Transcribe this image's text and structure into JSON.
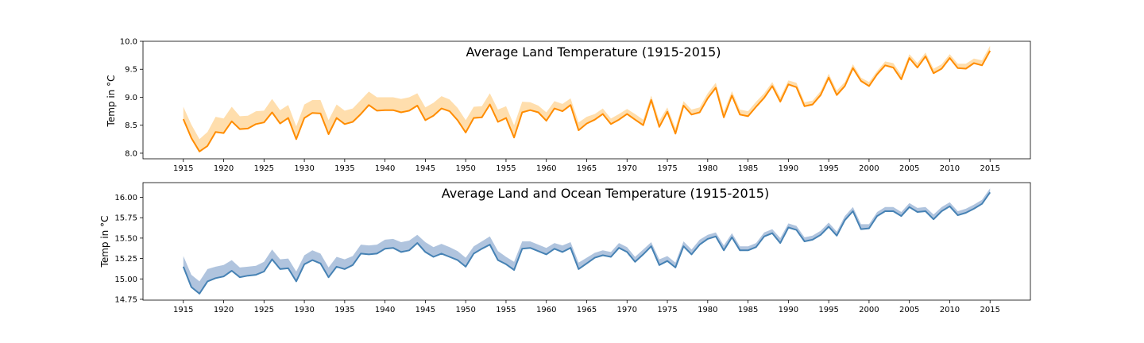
{
  "chart_data": [
    {
      "type": "line",
      "title": "Average Land Temperature (1915-2015)",
      "xlabel": "",
      "ylabel": "Temp in °C",
      "xlim": [
        1910,
        2020
      ],
      "ylim": [
        7.9,
        10.0
      ],
      "xticks": [
        1915,
        1920,
        1925,
        1930,
        1935,
        1940,
        1945,
        1950,
        1955,
        1960,
        1965,
        1970,
        1975,
        1980,
        1985,
        1990,
        1995,
        2000,
        2005,
        2010,
        2015
      ],
      "yticks": [
        8.0,
        8.5,
        9.0,
        9.5,
        10.0
      ],
      "ytick_labels": [
        "8.0",
        "8.5",
        "9.0",
        "9.5",
        "10.0"
      ],
      "line_color": "#ff8c00",
      "band_color": "#ffdead",
      "x": [
        1915,
        1916,
        1917,
        1918,
        1919,
        1920,
        1921,
        1922,
        1923,
        1924,
        1925,
        1926,
        1927,
        1928,
        1929,
        1930,
        1931,
        1932,
        1933,
        1934,
        1935,
        1936,
        1937,
        1938,
        1939,
        1940,
        1941,
        1942,
        1943,
        1944,
        1945,
        1946,
        1947,
        1948,
        1949,
        1950,
        1951,
        1952,
        1953,
        1954,
        1955,
        1956,
        1957,
        1958,
        1959,
        1960,
        1961,
        1962,
        1963,
        1964,
        1965,
        1966,
        1967,
        1968,
        1969,
        1970,
        1971,
        1972,
        1973,
        1974,
        1975,
        1976,
        1977,
        1978,
        1979,
        1980,
        1981,
        1982,
        1983,
        1984,
        1985,
        1986,
        1987,
        1988,
        1989,
        1990,
        1991,
        1992,
        1993,
        1994,
        1995,
        1996,
        1997,
        1998,
        1999,
        2000,
        2001,
        2002,
        2003,
        2004,
        2005,
        2006,
        2007,
        2008,
        2009,
        2010,
        2011,
        2012,
        2013,
        2014,
        2015
      ],
      "series": [
        {
          "values": [
            8.61,
            8.27,
            8.03,
            8.13,
            8.38,
            8.36,
            8.57,
            8.43,
            8.44,
            8.52,
            8.55,
            8.73,
            8.53,
            8.63,
            8.25,
            8.63,
            8.72,
            8.71,
            8.34,
            8.63,
            8.52,
            8.56,
            8.7,
            8.86,
            8.76,
            8.77,
            8.77,
            8.73,
            8.76,
            8.85,
            8.59,
            8.67,
            8.8,
            8.75,
            8.59,
            8.37,
            8.63,
            8.64,
            8.87,
            8.56,
            8.63,
            8.28,
            8.73,
            8.77,
            8.73,
            8.58,
            8.8,
            8.75,
            8.86,
            8.41,
            8.53,
            8.6,
            8.7,
            8.52,
            8.6,
            8.7,
            8.6,
            8.5,
            8.95,
            8.47,
            8.74,
            8.35,
            8.85,
            8.69,
            8.73,
            8.98,
            9.17,
            8.64,
            9.03,
            8.69,
            8.66,
            8.83,
            8.99,
            9.2,
            8.92,
            9.23,
            9.18,
            8.84,
            8.87,
            9.04,
            9.35,
            9.04,
            9.2,
            9.52,
            9.29,
            9.2,
            9.41,
            9.57,
            9.53,
            9.32,
            9.7,
            9.53,
            9.73,
            9.43,
            9.51,
            9.7,
            9.52,
            9.51,
            9.61,
            9.57,
            9.83
          ],
          "upper": [
            8.83,
            8.51,
            8.25,
            8.38,
            8.65,
            8.62,
            8.83,
            8.66,
            8.67,
            8.75,
            8.76,
            8.97,
            8.77,
            8.86,
            8.48,
            8.87,
            8.95,
            8.95,
            8.59,
            8.87,
            8.76,
            8.8,
            8.95,
            9.1,
            9.0,
            9.0,
            9.0,
            8.97,
            9.0,
            9.07,
            8.82,
            8.9,
            9.02,
            8.96,
            8.81,
            8.59,
            8.83,
            8.84,
            9.07,
            8.78,
            8.84,
            8.5,
            8.92,
            8.91,
            8.85,
            8.73,
            8.93,
            8.88,
            8.98,
            8.55,
            8.65,
            8.7,
            8.8,
            8.62,
            8.7,
            8.79,
            8.7,
            8.6,
            9.03,
            8.58,
            8.82,
            8.45,
            8.93,
            8.78,
            8.82,
            9.07,
            9.26,
            8.74,
            9.11,
            8.78,
            8.75,
            8.92,
            9.07,
            9.27,
            9.0,
            9.3,
            9.26,
            8.91,
            8.94,
            9.11,
            9.42,
            9.12,
            9.27,
            9.59,
            9.35,
            9.27,
            9.47,
            9.64,
            9.61,
            9.4,
            9.77,
            9.61,
            9.8,
            9.51,
            9.59,
            9.77,
            9.6,
            9.6,
            9.69,
            9.66,
            9.92
          ],
          "lower": [
            8.61,
            8.27,
            8.03,
            8.13,
            8.38,
            8.36,
            8.57,
            8.43,
            8.44,
            8.52,
            8.55,
            8.73,
            8.53,
            8.63,
            8.25,
            8.63,
            8.72,
            8.71,
            8.34,
            8.63,
            8.52,
            8.56,
            8.7,
            8.86,
            8.76,
            8.77,
            8.77,
            8.73,
            8.76,
            8.85,
            8.59,
            8.67,
            8.8,
            8.75,
            8.59,
            8.37,
            8.63,
            8.64,
            8.87,
            8.56,
            8.63,
            8.28,
            8.73,
            8.77,
            8.73,
            8.58,
            8.8,
            8.75,
            8.86,
            8.41,
            8.53,
            8.6,
            8.7,
            8.52,
            8.6,
            8.7,
            8.6,
            8.5,
            8.95,
            8.47,
            8.74,
            8.35,
            8.85,
            8.69,
            8.73,
            8.98,
            9.17,
            8.64,
            9.03,
            8.69,
            8.66,
            8.83,
            8.99,
            9.2,
            8.92,
            9.23,
            9.18,
            8.84,
            8.87,
            9.04,
            9.35,
            9.04,
            9.2,
            9.52,
            9.29,
            9.2,
            9.41,
            9.57,
            9.53,
            9.32,
            9.7,
            9.53,
            9.73,
            9.43,
            9.51,
            9.7,
            9.52,
            9.51,
            9.61,
            9.57,
            9.83
          ]
        }
      ]
    },
    {
      "type": "line",
      "title": "Average Land and Ocean Temperature (1915-2015)",
      "xlabel": "",
      "ylabel": "Temp in °C",
      "xlim": [
        1910,
        2020
      ],
      "ylim": [
        14.74,
        16.18
      ],
      "xticks": [
        1915,
        1920,
        1925,
        1930,
        1935,
        1940,
        1945,
        1950,
        1955,
        1960,
        1965,
        1970,
        1975,
        1980,
        1985,
        1990,
        1995,
        2000,
        2005,
        2010,
        2015
      ],
      "yticks": [
        14.75,
        15.0,
        15.25,
        15.5,
        15.75,
        16.0
      ],
      "ytick_labels": [
        "14.75",
        "15.00",
        "15.25",
        "15.50",
        "15.75",
        "16.00"
      ],
      "line_color": "#4682b4",
      "band_color": "#b0c4de",
      "x": [
        1915,
        1916,
        1917,
        1918,
        1919,
        1920,
        1921,
        1922,
        1923,
        1924,
        1925,
        1926,
        1927,
        1928,
        1929,
        1930,
        1931,
        1932,
        1933,
        1934,
        1935,
        1936,
        1937,
        1938,
        1939,
        1940,
        1941,
        1942,
        1943,
        1944,
        1945,
        1946,
        1947,
        1948,
        1949,
        1950,
        1951,
        1952,
        1953,
        1954,
        1955,
        1956,
        1957,
        1958,
        1959,
        1960,
        1961,
        1962,
        1963,
        1964,
        1965,
        1966,
        1967,
        1968,
        1969,
        1970,
        1971,
        1972,
        1973,
        1974,
        1975,
        1976,
        1977,
        1978,
        1979,
        1980,
        1981,
        1982,
        1983,
        1984,
        1985,
        1986,
        1987,
        1988,
        1989,
        1990,
        1991,
        1992,
        1993,
        1994,
        1995,
        1996,
        1997,
        1998,
        1999,
        2000,
        2001,
        2002,
        2003,
        2004,
        2005,
        2006,
        2007,
        2008,
        2009,
        2010,
        2011,
        2012,
        2013,
        2014,
        2015
      ],
      "series": [
        {
          "values": [
            15.15,
            14.9,
            14.82,
            14.97,
            15.01,
            15.03,
            15.1,
            15.02,
            15.04,
            15.05,
            15.09,
            15.24,
            15.12,
            15.13,
            14.97,
            15.18,
            15.23,
            15.19,
            15.02,
            15.15,
            15.12,
            15.17,
            15.31,
            15.3,
            15.31,
            15.37,
            15.38,
            15.33,
            15.35,
            15.44,
            15.33,
            15.27,
            15.31,
            15.27,
            15.23,
            15.15,
            15.31,
            15.37,
            15.42,
            15.23,
            15.18,
            15.11,
            15.37,
            15.38,
            15.34,
            15.3,
            15.37,
            15.33,
            15.38,
            15.12,
            15.19,
            15.26,
            15.29,
            15.27,
            15.38,
            15.33,
            15.21,
            15.3,
            15.4,
            15.17,
            15.22,
            15.14,
            15.4,
            15.3,
            15.42,
            15.49,
            15.52,
            15.35,
            15.51,
            15.35,
            15.35,
            15.39,
            15.52,
            15.56,
            15.44,
            15.63,
            15.6,
            15.46,
            15.48,
            15.54,
            15.64,
            15.53,
            15.72,
            15.83,
            15.61,
            15.62,
            15.77,
            15.83,
            15.83,
            15.77,
            15.88,
            15.82,
            15.83,
            15.73,
            15.83,
            15.89,
            15.78,
            15.81,
            15.86,
            15.92,
            16.06
          ],
          "upper": [
            15.28,
            15.05,
            14.97,
            15.12,
            15.15,
            15.17,
            15.23,
            15.14,
            15.15,
            15.16,
            15.21,
            15.36,
            15.24,
            15.25,
            15.09,
            15.29,
            15.35,
            15.31,
            15.14,
            15.27,
            15.24,
            15.28,
            15.42,
            15.41,
            15.42,
            15.48,
            15.49,
            15.45,
            15.47,
            15.54,
            15.45,
            15.39,
            15.43,
            15.39,
            15.34,
            15.26,
            15.4,
            15.46,
            15.52,
            15.34,
            15.27,
            15.21,
            15.46,
            15.46,
            15.42,
            15.38,
            15.44,
            15.41,
            15.45,
            15.2,
            15.26,
            15.32,
            15.35,
            15.33,
            15.44,
            15.39,
            15.27,
            15.36,
            15.45,
            15.24,
            15.28,
            15.2,
            15.46,
            15.36,
            15.48,
            15.54,
            15.57,
            15.41,
            15.56,
            15.4,
            15.4,
            15.44,
            15.57,
            15.61,
            15.5,
            15.68,
            15.65,
            15.51,
            15.53,
            15.59,
            15.69,
            15.58,
            15.77,
            15.88,
            15.67,
            15.67,
            15.82,
            15.88,
            15.88,
            15.82,
            15.93,
            15.87,
            15.88,
            15.79,
            15.88,
            15.94,
            15.83,
            15.86,
            15.91,
            15.97,
            16.11
          ],
          "lower": [
            15.15,
            14.9,
            14.82,
            14.97,
            15.01,
            15.03,
            15.1,
            15.02,
            15.04,
            15.05,
            15.09,
            15.24,
            15.12,
            15.13,
            14.97,
            15.18,
            15.23,
            15.19,
            15.02,
            15.15,
            15.12,
            15.17,
            15.31,
            15.3,
            15.31,
            15.37,
            15.38,
            15.33,
            15.35,
            15.44,
            15.33,
            15.27,
            15.31,
            15.27,
            15.23,
            15.15,
            15.31,
            15.37,
            15.42,
            15.23,
            15.18,
            15.11,
            15.37,
            15.38,
            15.34,
            15.3,
            15.37,
            15.33,
            15.38,
            15.12,
            15.19,
            15.26,
            15.29,
            15.27,
            15.38,
            15.33,
            15.21,
            15.3,
            15.4,
            15.17,
            15.22,
            15.14,
            15.4,
            15.3,
            15.42,
            15.49,
            15.52,
            15.35,
            15.51,
            15.35,
            15.35,
            15.39,
            15.52,
            15.56,
            15.44,
            15.63,
            15.6,
            15.46,
            15.48,
            15.54,
            15.64,
            15.53,
            15.72,
            15.83,
            15.61,
            15.62,
            15.77,
            15.83,
            15.83,
            15.77,
            15.88,
            15.82,
            15.83,
            15.73,
            15.83,
            15.89,
            15.78,
            15.81,
            15.86,
            15.92,
            16.06
          ]
        }
      ]
    }
  ]
}
